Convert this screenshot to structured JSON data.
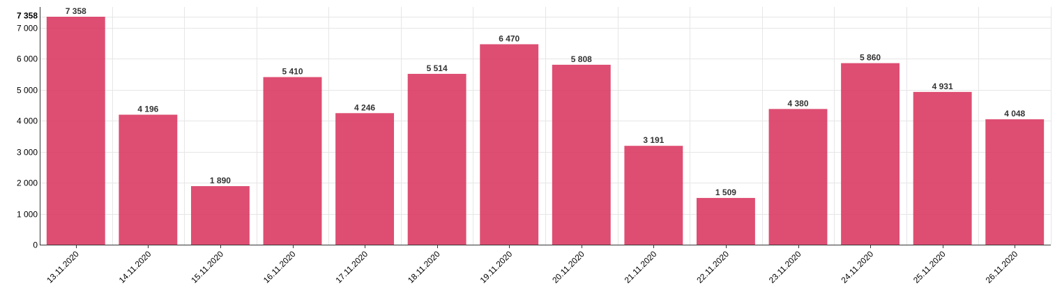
{
  "chart_data": {
    "type": "bar",
    "categories": [
      "13.11.2020",
      "14.11.2020",
      "15.11.2020",
      "16.11.2020",
      "17.11.2020",
      "18.11.2020",
      "19.11.2020",
      "20.11.2020",
      "21.11.2020",
      "22.11.2020",
      "23.11.2020",
      "24.11.2020",
      "25.11.2020",
      "26.11.2020"
    ],
    "values": [
      7358,
      4196,
      1890,
      5410,
      4246,
      5514,
      6470,
      5808,
      3191,
      1509,
      4380,
      5860,
      4931,
      4048
    ],
    "value_labels": [
      "7 358",
      "4 196",
      "1 890",
      "5 410",
      "4 246",
      "5 514",
      "6 470",
      "5 808",
      "3 191",
      "1 509",
      "4 380",
      "5 860",
      "4 931",
      "4 048"
    ],
    "y_ticks": [
      0,
      1000,
      2000,
      3000,
      4000,
      5000,
      6000,
      7000
    ],
    "y_tick_labels": [
      "0",
      "1 000",
      "2 000",
      "3 000",
      "4 000",
      "5 000",
      "6 000",
      "7 000"
    ],
    "y_max_label": "7 358",
    "ylim": [
      0,
      7358
    ],
    "grid": true,
    "bar_color": "#d9355e",
    "title": "",
    "xlabel": "",
    "ylabel": ""
  }
}
